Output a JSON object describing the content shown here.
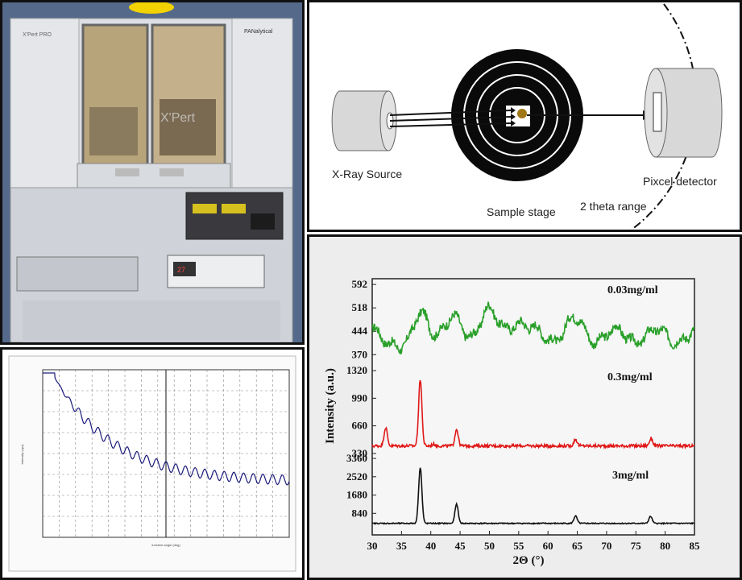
{
  "photo": {
    "model_label": "X'Pert PRO",
    "brand_label": "PANalytical",
    "window_logo": "X'Pert",
    "display_value": "27"
  },
  "diagram": {
    "source_label": "X-Ray Source",
    "stage_label": "Sample stage",
    "detector_label": "Pixcel detector",
    "range_label": "2 theta range"
  },
  "reflectivity_chart": {
    "type": "line",
    "line_color": "#1a1a7a",
    "xlabel": "Incident angle (deg)",
    "ylabel": "Intensity (cps)"
  },
  "chart_data": {
    "type": "line",
    "title": "",
    "xlabel": "2Θ (°)",
    "ylabel": "Intensity (a.u.)",
    "x_ticks": [
      30,
      35,
      40,
      45,
      50,
      55,
      60,
      65,
      70,
      75,
      80,
      85
    ],
    "xlim": [
      30,
      85
    ],
    "panels": [
      {
        "name": "0.03mg/ml",
        "color": "#2aa02a",
        "y_ticks": [
          370,
          444,
          518,
          592
        ],
        "ylim": [
          330,
          600
        ],
        "baseline": 430,
        "noise": 14,
        "peaks": [
          [
            38.3,
            520
          ],
          [
            36.2,
            370
          ],
          [
            49.6,
            500
          ],
          [
            54.5,
            485
          ],
          [
            64.5,
            470
          ],
          [
            44.0,
            470
          ]
        ]
      },
      {
        "name": "0.3mg/ml",
        "color": "#e01818",
        "y_ticks": [
          330,
          660,
          990,
          1320
        ],
        "ylim": [
          300,
          1340
        ],
        "baseline": 420,
        "noise": 18,
        "peaks": [
          [
            38.2,
            1220
          ],
          [
            32.3,
            640
          ],
          [
            44.4,
            620
          ],
          [
            64.7,
            500
          ],
          [
            77.6,
            510
          ],
          [
            40.5,
            440
          ]
        ]
      },
      {
        "name": "3mg/ml",
        "color": "#111111",
        "y_ticks": [
          840,
          1680,
          2520,
          3360
        ],
        "ylim": [
          0,
          3400
        ],
        "baseline": 380,
        "noise": 25,
        "peaks": [
          [
            38.2,
            2950
          ],
          [
            44.4,
            1260
          ],
          [
            64.7,
            720
          ],
          [
            77.5,
            700
          ]
        ]
      }
    ]
  }
}
